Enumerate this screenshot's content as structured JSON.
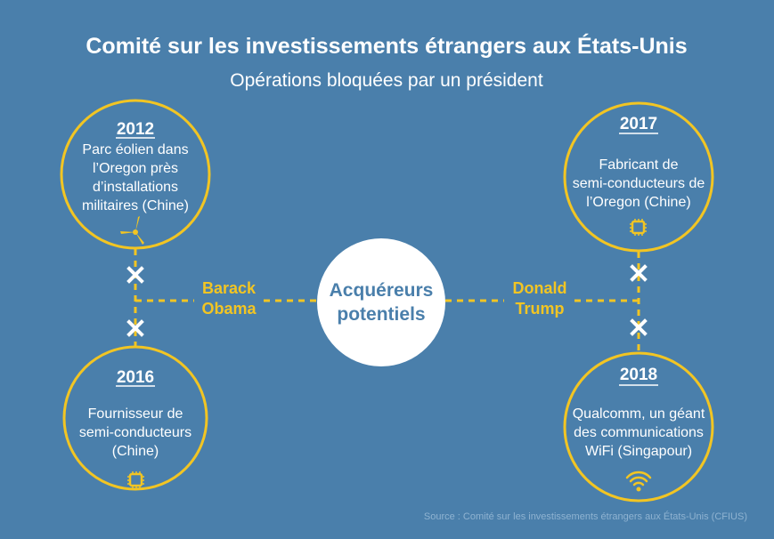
{
  "title": "Comité sur les investissements étrangers aux États-Unis",
  "subtitle": "Opérations bloquées par un président",
  "colors": {
    "background": "#4a7fab",
    "accent": "#f2c523",
    "text": "#ffffff"
  },
  "center": {
    "line1": "Acquéreurs",
    "line2": "potentiels"
  },
  "presidents": [
    {
      "line1": "Barack",
      "line2": "Obama"
    },
    {
      "line1": "Donald",
      "line2": "Trump"
    }
  ],
  "deals": [
    {
      "year": "2012",
      "lines": [
        "Parc éolien dans",
        "l’Oregon près",
        "d’installations",
        "militaires (Chine)"
      ],
      "icon": "wind-turbine-icon"
    },
    {
      "year": "2016",
      "lines": [
        "Fournisseur de",
        "semi-conducteurs",
        "(Chine)"
      ],
      "icon": "chip-icon"
    },
    {
      "year": "2017",
      "lines": [
        "Fabricant de",
        "semi-conducteurs de",
        "l’Oregon (Chine)"
      ],
      "icon": "chip-icon"
    },
    {
      "year": "2018",
      "lines": [
        "Qualcomm, un géant",
        "des communications",
        "WiFi (Singapour)"
      ],
      "icon": "wifi-icon"
    }
  ],
  "source": "Source : Comité sur les investissements étrangers aux États-Unis (CFIUS)"
}
